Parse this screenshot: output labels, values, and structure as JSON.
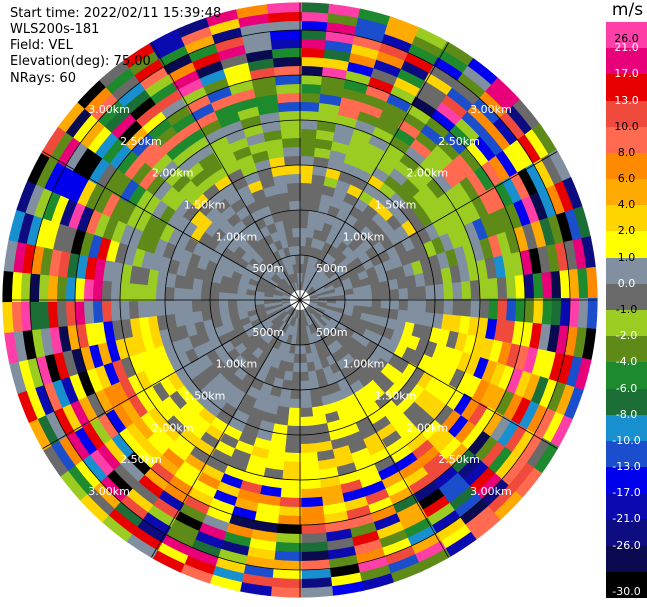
{
  "header": {
    "start_time": "Start time: 2022/02/11 15:39:48",
    "instrument": "WLS200s-181",
    "field": "Field: VEL",
    "elevation": "Elevation(deg): 75.00",
    "nrays": "NRays: 60"
  },
  "colorbar": {
    "unit": "m/s",
    "levels": [
      {
        "label": "26.0",
        "color": "#ff3ea8"
      },
      {
        "label": "21.0",
        "color": "#e8007a"
      },
      {
        "label": "17.0",
        "color": "#e80000"
      },
      {
        "label": "13.0",
        "color": "#f04a3c"
      },
      {
        "label": "10.0",
        "color": "#ff6a50"
      },
      {
        "label": "8.0",
        "color": "#ff8a00"
      },
      {
        "label": "6.0",
        "color": "#ffaa00"
      },
      {
        "label": "4.0",
        "color": "#ffd500"
      },
      {
        "label": "2.0",
        "color": "#ffff00"
      },
      {
        "label": "1.0",
        "color": "#8090a0"
      },
      {
        "label": "0.0",
        "color": "#6a6a6a"
      },
      {
        "label": "-1.0",
        "color": "#9acc22"
      },
      {
        "label": "-2.0",
        "color": "#5e8a18"
      },
      {
        "label": "-4.0",
        "color": "#1e8a2e"
      },
      {
        "label": "-6.0",
        "color": "#1a6e36"
      },
      {
        "label": "-8.0",
        "color": "#1890d0"
      },
      {
        "label": "-10.0",
        "color": "#1a4ecc"
      },
      {
        "label": "-13.0",
        "color": "#0000ee"
      },
      {
        "label": "-17.0",
        "color": "#0a0ab0"
      },
      {
        "label": "-21.0",
        "color": "#0c0c80"
      },
      {
        "label": "-26.0",
        "color": "#0a0a50"
      },
      {
        "label": "-30.0",
        "color": "#000000"
      }
    ]
  },
  "chart_data": {
    "type": "heatmap",
    "projection": "polar",
    "nrays": 60,
    "elevation_deg": 75.0,
    "range_rings_km": [
      0.5,
      1.0,
      1.5,
      2.0,
      2.5,
      3.0
    ],
    "ring_labels": [
      "500m",
      "1.00km",
      "1.50km",
      "2.00km",
      "2.50km",
      "3.00km"
    ],
    "max_range_km": 3.3,
    "gate_km": 0.1,
    "min_range_km": 0.1,
    "spokes_deg": [
      0,
      30,
      60,
      90,
      120,
      150,
      180,
      210,
      240,
      270,
      300,
      330
    ],
    "unit": "m/s",
    "velocity_range": [
      -30,
      26
    ],
    "pattern": "Mostly 0 to 1 m/s out to ~1.5 km; -2 to -1 m/s toward the north and northwest, 2 to 6 m/s toward the south and southeast; noisy values spanning the full color range beyond ~2.5 km"
  }
}
